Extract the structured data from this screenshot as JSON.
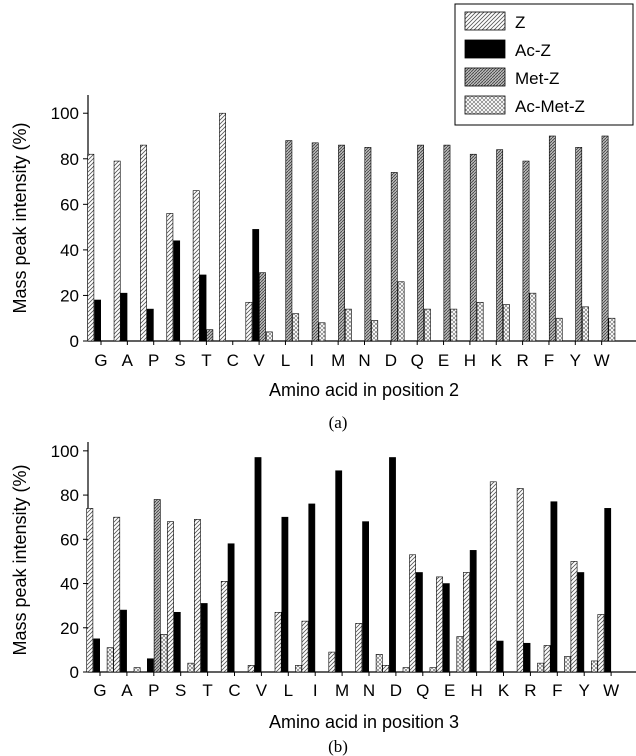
{
  "legend": [
    {
      "name": "Z",
      "pattern": "diag"
    },
    {
      "name": "Ac-Z",
      "pattern": "solid"
    },
    {
      "name": "Met-Z",
      "pattern": "dense"
    },
    {
      "name": "Ac-Met-Z",
      "pattern": "cross"
    }
  ],
  "chart_data": [
    {
      "type": "bar",
      "panel_label": "(a)",
      "xlabel": "Amino acid in position 2",
      "ylabel": "Mass peak intensity (%)",
      "ylim": [
        0,
        108
      ],
      "yticks": [
        0,
        20,
        40,
        60,
        80,
        100
      ],
      "categories": [
        "G",
        "A",
        "P",
        "S",
        "T",
        "C",
        "V",
        "L",
        "I",
        "M",
        "N",
        "D",
        "Q",
        "E",
        "H",
        "K",
        "R",
        "F",
        "Y",
        "W"
      ],
      "series": [
        {
          "name": "Z",
          "values": [
            82,
            79,
            86,
            56,
            66,
            100,
            17,
            null,
            null,
            null,
            null,
            null,
            null,
            null,
            null,
            null,
            null,
            null,
            null,
            null
          ]
        },
        {
          "name": "Ac-Z",
          "values": [
            18,
            21,
            14,
            44,
            29,
            0,
            49,
            null,
            null,
            null,
            null,
            null,
            null,
            null,
            null,
            null,
            null,
            null,
            null,
            null
          ]
        },
        {
          "name": "Met-Z",
          "values": [
            null,
            null,
            null,
            null,
            5,
            null,
            30,
            88,
            87,
            86,
            85,
            74,
            86,
            86,
            82,
            84,
            79,
            90,
            85,
            90
          ]
        },
        {
          "name": "Ac-Met-Z",
          "values": [
            null,
            null,
            null,
            null,
            null,
            null,
            4,
            12,
            8,
            14,
            9,
            26,
            14,
            14,
            17,
            16,
            21,
            10,
            15,
            10
          ]
        }
      ]
    },
    {
      "type": "bar",
      "panel_label": "(b)",
      "xlabel": "Amino acid in position 3",
      "ylabel": "Mass peak intensity (%)",
      "ylim": [
        0,
        104
      ],
      "yticks": [
        0,
        20,
        40,
        60,
        80,
        100
      ],
      "categories": [
        "G",
        "A",
        "P",
        "S",
        "T",
        "C",
        "V",
        "L",
        "I",
        "M",
        "N",
        "D",
        "Q",
        "E",
        "H",
        "K",
        "R",
        "F",
        "Y",
        "W"
      ],
      "series": [
        {
          "name": "Z",
          "values": [
            74,
            70,
            null,
            68,
            69,
            41,
            3,
            27,
            23,
            9,
            22,
            3,
            53,
            43,
            45,
            86,
            83,
            12,
            50,
            26
          ]
        },
        {
          "name": "Ac-Z",
          "values": [
            15,
            28,
            6,
            27,
            31,
            58,
            97,
            70,
            76,
            91,
            68,
            97,
            45,
            40,
            55,
            14,
            13,
            77,
            45,
            74
          ]
        },
        {
          "name": "Met-Z",
          "values": [
            null,
            null,
            78,
            null,
            null,
            null,
            null,
            null,
            null,
            null,
            null,
            null,
            null,
            null,
            null,
            null,
            null,
            null,
            null,
            null
          ]
        },
        {
          "name": "Ac-Met-Z",
          "values": [
            11,
            2,
            17,
            4,
            0,
            0,
            0,
            3,
            0,
            0,
            8,
            2,
            2,
            16,
            0,
            0,
            4,
            7,
            5,
            0
          ]
        }
      ]
    }
  ]
}
